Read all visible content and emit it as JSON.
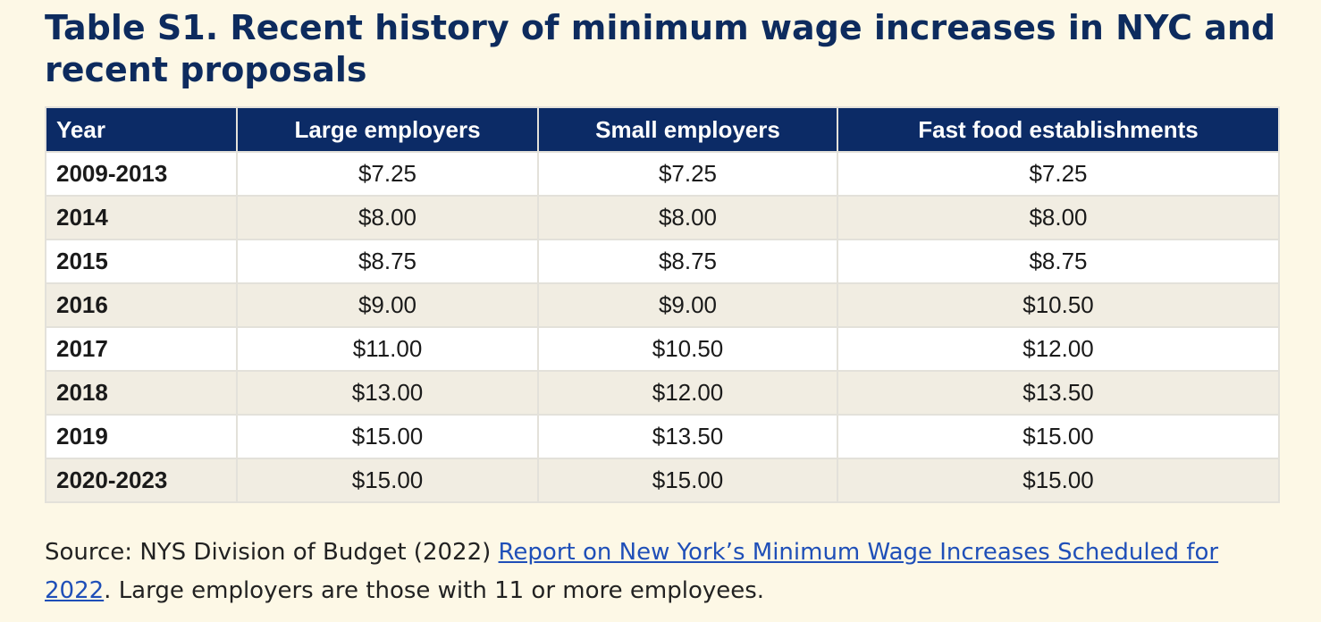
{
  "title": "Table S1. Recent history of minimum wage increases in NYC and recent proposals",
  "table": {
    "headers": [
      "Year",
      "Large employers",
      "Small employers",
      "Fast food establishments"
    ],
    "rows": [
      [
        "2009-2013",
        "$7.25",
        "$7.25",
        "$7.25"
      ],
      [
        "2014",
        "$8.00",
        "$8.00",
        "$8.00"
      ],
      [
        "2015",
        "$8.75",
        "$8.75",
        "$8.75"
      ],
      [
        "2016",
        "$9.00",
        "$9.00",
        "$10.50"
      ],
      [
        "2017",
        "$11.00",
        "$10.50",
        "$12.00"
      ],
      [
        "2018",
        "$13.00",
        "$12.00",
        "$13.50"
      ],
      [
        "2019",
        "$15.00",
        "$13.50",
        "$15.00"
      ],
      [
        "2020-2023",
        "$15.00",
        "$15.00",
        "$15.00"
      ]
    ]
  },
  "source": {
    "prefix": "Source: NYS Division of Budget (2022) ",
    "link_text": "Report on New York’s Minimum Wage Increases Scheduled for 2022",
    "suffix": ". Large employers are those with 11 or more employees."
  },
  "colors": {
    "background": "#fdf8e6",
    "title": "#0d2b5e",
    "header_bg": "#0c2b66",
    "row_alt": "#f1ede2",
    "link": "#1f4fb8"
  }
}
